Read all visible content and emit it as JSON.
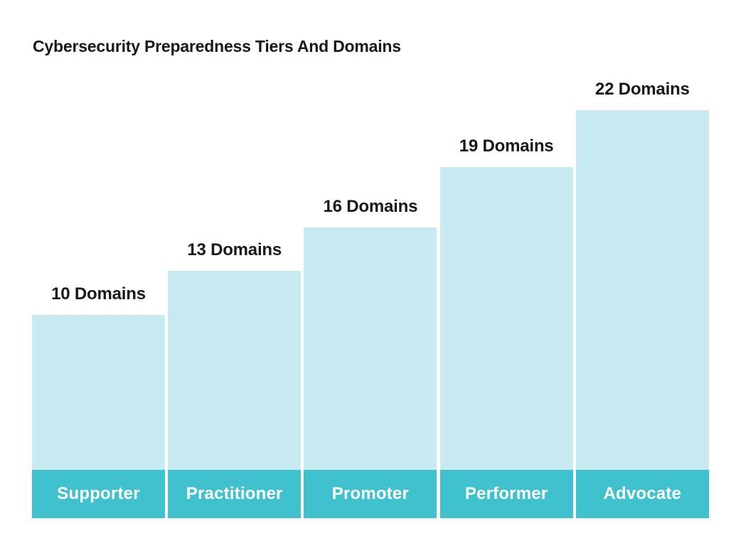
{
  "title": "Cybersecurity Preparedness Tiers And Domains",
  "colors": {
    "background": "#FFFFFF",
    "bar_fill": "#C8EAF1",
    "tier_band_fill": "#3FC1CE",
    "text_dark": "#17191C",
    "tier_label_text": "#FFFFFF"
  },
  "chart_data": {
    "type": "bar",
    "title": "Cybersecurity Preparedness Tiers And Domains",
    "orientation": "vertical",
    "categories": [
      "Supporter",
      "Practitioner",
      "Promoter",
      "Performer",
      "Advocate"
    ],
    "values": [
      10,
      13,
      16,
      19,
      22
    ],
    "value_labels": [
      "10 Domains",
      "13 Domains",
      "16 Domains",
      "19 Domains",
      "22 Domains"
    ],
    "xlabel": "",
    "ylabel": "",
    "grid": false,
    "legend": "none",
    "axis_ticks": "none",
    "value_label_position": "above-bar",
    "category_label_position": "inside-bar-bottom-band"
  }
}
